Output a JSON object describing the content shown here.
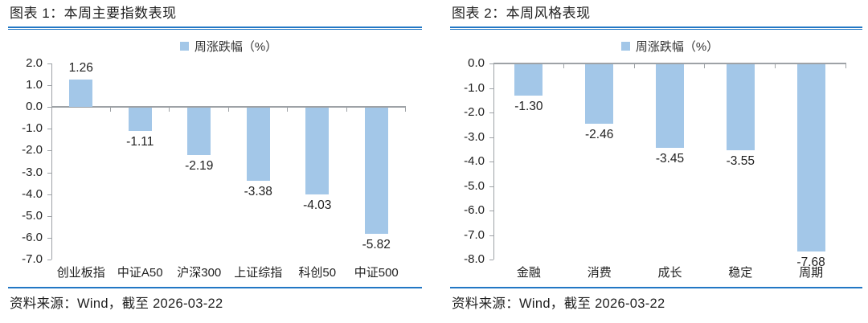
{
  "colors": {
    "bar": "#A3C7E8",
    "accent_line": "#2277C4",
    "axis": "#9EA2A6",
    "text": "#1F1F1F"
  },
  "panels": [
    {
      "title": "图表 1：本周主要指数表现",
      "source": "资料来源：Wind，截至 2026-03-22"
    },
    {
      "title": "图表 2：本周风格表现",
      "source": "资料来源：Wind，截至 2026-03-22"
    }
  ],
  "chart_data": [
    {
      "type": "bar",
      "title": "本周主要指数表现",
      "legend": "周涨跌幅（%）",
      "legend_position": "top",
      "categories": [
        "创业板指",
        "中证A50",
        "沪深300",
        "上证综指",
        "科创50",
        "中证500"
      ],
      "values": [
        1.26,
        -1.11,
        -2.19,
        -3.38,
        -4.03,
        -5.82
      ],
      "ylim": [
        -7.0,
        2.0
      ],
      "ytick_step": 1.0,
      "grid": false,
      "value_labels": true,
      "bar_color": "#A3C7E8"
    },
    {
      "type": "bar",
      "title": "本周风格表现",
      "legend": "周涨跌幅（%）",
      "legend_position": "top",
      "categories": [
        "金融",
        "消费",
        "成长",
        "稳定",
        "周期"
      ],
      "values": [
        -1.3,
        -2.46,
        -3.45,
        -3.55,
        -7.68
      ],
      "ylim": [
        -8.0,
        0.0
      ],
      "ytick_step": 1.0,
      "grid": false,
      "value_labels": true,
      "bar_color": "#A3C7E8"
    }
  ]
}
